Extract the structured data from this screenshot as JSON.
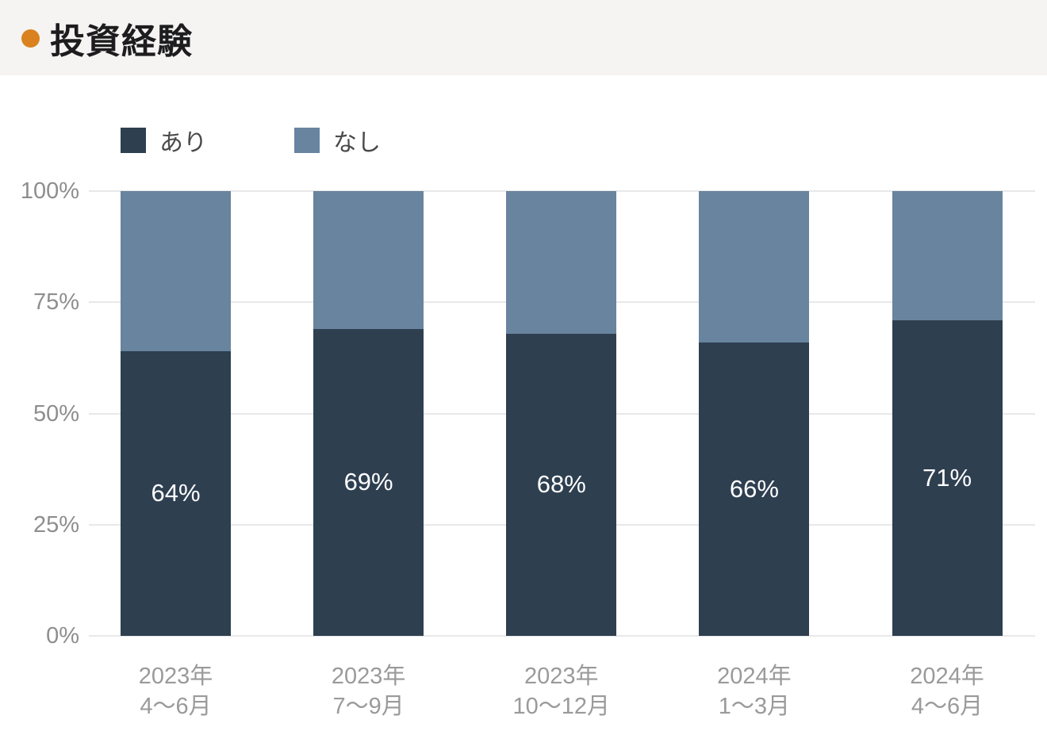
{
  "header": {
    "title": "投資経験",
    "bullet_color": "#d9821f"
  },
  "colors": {
    "header_background": "#f5f4f2",
    "chart_background": "#ffffff",
    "gridline": "#e8e8e8",
    "axis_label": "#8e8e8e",
    "category_label": "#9a9a9a",
    "legend_text": "#4a4a4a",
    "bar_value_text": "#ffffff",
    "series_ari": "#2e3f50",
    "series_nashi": "#68849e"
  },
  "chart_data": {
    "type": "bar",
    "stacked": true,
    "title": "投資経験",
    "categories": [
      "2023年\n4〜6月",
      "2023年\n7〜9月",
      "2023年\n10〜12月",
      "2024年\n1〜3月",
      "2024年\n4〜6月"
    ],
    "series": [
      {
        "name": "あり",
        "color": "#2e3f50",
        "values": [
          64,
          69,
          68,
          66,
          71
        ],
        "value_labels": [
          "64%",
          "69%",
          "68%",
          "66%",
          "71%"
        ]
      },
      {
        "name": "なし",
        "color": "#68849e",
        "values": [
          36,
          31,
          32,
          34,
          29
        ],
        "value_labels": [
          "",
          "",
          "",
          "",
          ""
        ]
      }
    ],
    "ylim": [
      0,
      100
    ],
    "y_ticks": [
      {
        "value": 0,
        "label": "0%"
      },
      {
        "value": 25,
        "label": "25%"
      },
      {
        "value": 50,
        "label": "50%"
      },
      {
        "value": 75,
        "label": "75%"
      },
      {
        "value": 100,
        "label": "100%"
      }
    ],
    "grid": true,
    "legend_position": "top-left"
  }
}
